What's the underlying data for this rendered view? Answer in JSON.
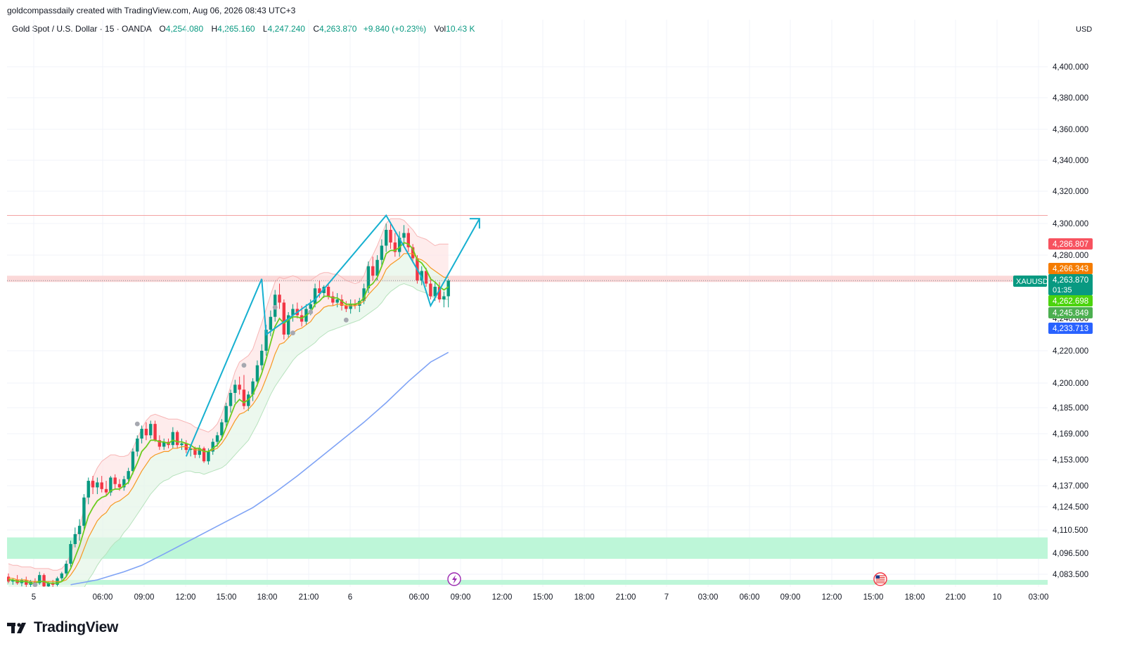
{
  "header": {
    "credit": "goldcompassdaily created with TradingView.com, Aug 06, 2026 08:43 UTC+3",
    "symbol": "Gold Spot / U.S. Dollar · 15 · OANDA",
    "o_label": "O",
    "o": "4,254.080",
    "h_label": "H",
    "h": "4,265.160",
    "l_label": "L",
    "l": "4,247.240",
    "c_label": "C",
    "c": "4,263.870",
    "change": "+9.840 (+0.23%)",
    "vol_label": "Vol",
    "vol": "10.43 K",
    "currency": "USD"
  },
  "footer": {
    "brand": "TradingView"
  },
  "chart_data": {
    "type": "candlestick",
    "y_axis": {
      "ticks": [
        4400,
        4380,
        4360,
        4340,
        4320,
        4300,
        4280,
        4220,
        4200,
        4185,
        4169,
        4153,
        4137,
        4124.5,
        4110.5,
        4096.5,
        4083.5
      ],
      "tick_labels": [
        "4,400.000",
        "4,380.000",
        "4,360.000",
        "4,340.000",
        "4,320.000",
        "4,300.000",
        "4,280.000",
        "4,220.000",
        "4,200.000",
        "4,185.000",
        "4,169.000",
        "4,153.000",
        "4,137.000",
        "4,124.500",
        "4,110.500",
        "4,096.500",
        "4,083.500"
      ],
      "partially_hidden_label": "4,240.000"
    },
    "x_axis": {
      "ticks": [
        "5",
        "06:00",
        "09:00",
        "12:00",
        "15:00",
        "18:00",
        "21:00",
        "6",
        "06:00",
        "09:00",
        "12:00",
        "15:00",
        "18:00",
        "21:00",
        "7",
        "03:00",
        "06:00",
        "09:00",
        "12:00",
        "15:00",
        "18:00",
        "21:00",
        "10",
        "03:00"
      ]
    },
    "price_tags": [
      {
        "label": "4,286.807",
        "value": 4286.8,
        "color": "#f7525f"
      },
      {
        "label": "4,266.343",
        "value": 4266.3,
        "color": "#f57c00"
      },
      {
        "label": "4,263.870",
        "value": 4263.9,
        "color": "#089981",
        "sub": "01:35"
      },
      {
        "label": "4,262.698",
        "value": 4256.0,
        "color": "#4cd40e"
      },
      {
        "label": "4,245.849",
        "value": 4246.5,
        "color": "#4caf50"
      },
      {
        "label": "4,233.713",
        "value": 4233.7,
        "color": "#2962ff"
      }
    ],
    "symbol_tag": "XAUUSD",
    "resistance_line": 4305,
    "resistance_zone": [
      4263,
      4267
    ],
    "support_zones": [
      [
        4093,
        4106
      ],
      [
        4077,
        4080
      ]
    ],
    "candles": [
      [
        4082,
        4084,
        4078,
        4079
      ],
      [
        4079,
        4081,
        4077,
        4080
      ],
      [
        4080,
        4083,
        4077,
        4078
      ],
      [
        4078,
        4081,
        4076,
        4080
      ],
      [
        4080,
        4082,
        4075,
        4077
      ],
      [
        4077,
        4080,
        4074,
        4079
      ],
      [
        4079,
        4081,
        4076,
        4078
      ],
      [
        4078,
        4085,
        4077,
        4083
      ],
      [
        4083,
        4084,
        4075,
        4076
      ],
      [
        4076,
        4079,
        4074,
        4078
      ],
      [
        4078,
        4080,
        4075,
        4077
      ],
      [
        4077,
        4082,
        4076,
        4081
      ],
      [
        4081,
        4085,
        4079,
        4084
      ],
      [
        4084,
        4092,
        4082,
        4090
      ],
      [
        4090,
        4104,
        4088,
        4102
      ],
      [
        4102,
        4112,
        4100,
        4108
      ],
      [
        4108,
        4117,
        4104,
        4113
      ],
      [
        4113,
        4132,
        4110,
        4130
      ],
      [
        4130,
        4142,
        4126,
        4140
      ],
      [
        4140,
        4143,
        4132,
        4136
      ],
      [
        4136,
        4142,
        4132,
        4139
      ],
      [
        4139,
        4143,
        4133,
        4135
      ],
      [
        4135,
        4140,
        4131,
        4133
      ],
      [
        4133,
        4143,
        4131,
        4142
      ],
      [
        4142,
        4144,
        4135,
        4138
      ],
      [
        4138,
        4141,
        4134,
        4136
      ],
      [
        4136,
        4143,
        4134,
        4141
      ],
      [
        4141,
        4148,
        4138,
        4146
      ],
      [
        4146,
        4160,
        4144,
        4158
      ],
      [
        4158,
        4168,
        4155,
        4166
      ],
      [
        4166,
        4174,
        4163,
        4172
      ],
      [
        4172,
        4176,
        4165,
        4168
      ],
      [
        4168,
        4177,
        4166,
        4175
      ],
      [
        4175,
        4177,
        4164,
        4165
      ],
      [
        4165,
        4168,
        4159,
        4161
      ],
      [
        4161,
        4166,
        4159,
        4164
      ],
      [
        4164,
        4166,
        4160,
        4162
      ],
      [
        4162,
        4173,
        4160,
        4170
      ],
      [
        4170,
        4171,
        4160,
        4162
      ],
      [
        4162,
        4166,
        4159,
        4163
      ],
      [
        4163,
        4165,
        4157,
        4159
      ],
      [
        4159,
        4162,
        4155,
        4160
      ],
      [
        4160,
        4161,
        4154,
        4156
      ],
      [
        4156,
        4162,
        4154,
        4160
      ],
      [
        4160,
        4161,
        4151,
        4152
      ],
      [
        4152,
        4160,
        4150,
        4158
      ],
      [
        4158,
        4166,
        4156,
        4164
      ],
      [
        4164,
        4170,
        4161,
        4168
      ],
      [
        4168,
        4178,
        4165,
        4176
      ],
      [
        4176,
        4188,
        4173,
        4186
      ],
      [
        4186,
        4196,
        4182,
        4194
      ],
      [
        4194,
        4202,
        4188,
        4199
      ],
      [
        4199,
        4204,
        4193,
        4196
      ],
      [
        4196,
        4205,
        4184,
        4186
      ],
      [
        4186,
        4195,
        4183,
        4193
      ],
      [
        4193,
        4203,
        4189,
        4201
      ],
      [
        4201,
        4214,
        4198,
        4211
      ],
      [
        4211,
        4224,
        4208,
        4220
      ],
      [
        4220,
        4236,
        4217,
        4233
      ],
      [
        4233,
        4245,
        4229,
        4241
      ],
      [
        4241,
        4258,
        4238,
        4255
      ],
      [
        4255,
        4262,
        4246,
        4250
      ],
      [
        4250,
        4252,
        4227,
        4230
      ],
      [
        4230,
        4244,
        4228,
        4242
      ],
      [
        4242,
        4249,
        4238,
        4246
      ],
      [
        4246,
        4250,
        4240,
        4242
      ],
      [
        4242,
        4248,
        4235,
        4238
      ],
      [
        4238,
        4249,
        4236,
        4246
      ],
      [
        4246,
        4252,
        4242,
        4249
      ],
      [
        4249,
        4262,
        4247,
        4259
      ],
      [
        4259,
        4264,
        4253,
        4256
      ],
      [
        4256,
        4261,
        4253,
        4260
      ],
      [
        4260,
        4262,
        4252,
        4254
      ],
      [
        4254,
        4257,
        4248,
        4250
      ],
      [
        4250,
        4256,
        4247,
        4252
      ],
      [
        4252,
        4255,
        4245,
        4248
      ],
      [
        4248,
        4251,
        4244,
        4246
      ],
      [
        4246,
        4252,
        4243,
        4249
      ],
      [
        4249,
        4252,
        4246,
        4248
      ],
      [
        4248,
        4253,
        4244,
        4251
      ],
      [
        4251,
        4262,
        4249,
        4259
      ],
      [
        4259,
        4276,
        4256,
        4273
      ],
      [
        4273,
        4279,
        4264,
        4267
      ],
      [
        4267,
        4280,
        4264,
        4277
      ],
      [
        4277,
        4290,
        4273,
        4286
      ],
      [
        4286,
        4300,
        4282,
        4296
      ],
      [
        4296,
        4301,
        4284,
        4288
      ],
      [
        4288,
        4294,
        4279,
        4282
      ],
      [
        4282,
        4295,
        4279,
        4291
      ],
      [
        4291,
        4299,
        4286,
        4294
      ],
      [
        4294,
        4297,
        4282,
        4285
      ],
      [
        4285,
        4287,
        4275,
        4278
      ],
      [
        4278,
        4280,
        4262,
        4264
      ],
      [
        4264,
        4273,
        4261,
        4270
      ],
      [
        4270,
        4272,
        4260,
        4262
      ],
      [
        4262,
        4266,
        4252,
        4254
      ],
      [
        4254,
        4263,
        4251,
        4260
      ],
      [
        4260,
        4263,
        4250,
        4252
      ],
      [
        4252,
        4257,
        4247,
        4254
      ],
      [
        4254,
        4265,
        4247,
        4264
      ]
    ],
    "ema_fast": [
      4080,
      4080,
      4079,
      4079,
      4079,
      4078,
      4078,
      4079,
      4079,
      4078,
      4078,
      4078,
      4079,
      4082,
      4087,
      4094,
      4101,
      4110,
      4119,
      4124,
      4128,
      4130,
      4131,
      4134,
      4135,
      4135,
      4137,
      4139,
      4145,
      4151,
      4158,
      4161,
      4165,
      4165,
      4164,
      4164,
      4163,
      4165,
      4164,
      4164,
      4163,
      4162,
      4160,
      4160,
      4158,
      4158,
      4160,
      4162,
      4166,
      4173,
      4180,
      4187,
      4190,
      4188,
      4190,
      4193,
      4199,
      4206,
      4215,
      4225,
      4235,
      4240,
      4237,
      4239,
      4241,
      4241,
      4240,
      4242,
      4244,
      4249,
      4251,
      4254,
      4254,
      4253,
      4253,
      4251,
      4249,
      4249,
      4249,
      4250,
      4253,
      4260,
      4262,
      4266,
      4273,
      4281,
      4283,
      4283,
      4285,
      4288,
      4287,
      4284,
      4277,
      4275,
      4271,
      4265,
      4263,
      4260,
      4258,
      4260
    ],
    "ema_mid": [
      4081,
      4081,
      4080,
      4080,
      4080,
      4079,
      4079,
      4079,
      4079,
      4079,
      4079,
      4079,
      4079,
      4080,
      4083,
      4087,
      4092,
      4099,
      4106,
      4111,
      4116,
      4119,
      4121,
      4125,
      4127,
      4128,
      4130,
      4132,
      4136,
      4141,
      4146,
      4150,
      4154,
      4156,
      4157,
      4158,
      4158,
      4160,
      4160,
      4161,
      4161,
      4160,
      4159,
      4159,
      4158,
      4158,
      4159,
      4160,
      4163,
      4167,
      4172,
      4177,
      4181,
      4182,
      4184,
      4187,
      4191,
      4196,
      4203,
      4210,
      4218,
      4224,
      4225,
      4228,
      4231,
      4233,
      4234,
      4236,
      4238,
      4242,
      4244,
      4247,
      4248,
      4248,
      4249,
      4249,
      4248,
      4248,
      4248,
      4249,
      4251,
      4255,
      4258,
      4261,
      4265,
      4271,
      4274,
      4276,
      4278,
      4281,
      4281,
      4281,
      4278,
      4277,
      4275,
      4272,
      4270,
      4268,
      4266,
      4266
    ],
    "bb_upper": [
      4090,
      4089,
      4089,
      4088,
      4088,
      4088,
      4087,
      4087,
      4087,
      4087,
      4086,
      4086,
      4087,
      4090,
      4096,
      4104,
      4112,
      4123,
      4134,
      4142,
      4148,
      4152,
      4154,
      4156,
      4156,
      4155,
      4155,
      4156,
      4160,
      4166,
      4172,
      4177,
      4180,
      4181,
      4180,
      4179,
      4178,
      4178,
      4178,
      4177,
      4176,
      4175,
      4173,
      4172,
      4171,
      4170,
      4172,
      4175,
      4181,
      4189,
      4198,
      4207,
      4213,
      4215,
      4217,
      4221,
      4229,
      4237,
      4246,
      4255,
      4263,
      4266,
      4265,
      4266,
      4267,
      4266,
      4264,
      4264,
      4264,
      4266,
      4268,
      4269,
      4269,
      4268,
      4268,
      4266,
      4264,
      4263,
      4262,
      4263,
      4267,
      4275,
      4280,
      4286,
      4293,
      4300,
      4303,
      4303,
      4303,
      4302,
      4299,
      4296,
      4292,
      4291,
      4290,
      4288,
      4286,
      4287,
      4287,
      4287
    ],
    "bb_lower": [
      4072,
      4072,
      4071,
      4071,
      4071,
      4070,
      4070,
      4070,
      4070,
      4070,
      4070,
      4070,
      4070,
      4069,
      4068,
      4069,
      4071,
      4075,
      4080,
      4084,
      4089,
      4093,
      4096,
      4100,
      4103,
      4105,
      4109,
      4112,
      4116,
      4120,
      4124,
      4128,
      4132,
      4135,
      4138,
      4140,
      4141,
      4143,
      4144,
      4145,
      4146,
      4146,
      4145,
      4145,
      4144,
      4145,
      4146,
      4147,
      4148,
      4150,
      4153,
      4156,
      4159,
      4162,
      4165,
      4170,
      4175,
      4181,
      4187,
      4193,
      4198,
      4202,
      4206,
      4210,
      4214,
      4217,
      4219,
      4221,
      4223,
      4225,
      4228,
      4230,
      4232,
      4233,
      4234,
      4235,
      4236,
      4237,
      4238,
      4239,
      4241,
      4243,
      4245,
      4247,
      4250,
      4254,
      4257,
      4259,
      4261,
      4262,
      4261,
      4260,
      4258,
      4257,
      4256,
      4254,
      4253,
      4253,
      4252,
      4252
    ],
    "sma_slow": [
      [
        14,
        4077
      ],
      [
        20,
        4080
      ],
      [
        26,
        4085
      ],
      [
        30,
        4089
      ],
      [
        35,
        4096
      ],
      [
        40,
        4103
      ],
      [
        45,
        4110
      ],
      [
        50,
        4117
      ],
      [
        55,
        4124
      ],
      [
        60,
        4133
      ],
      [
        65,
        4143
      ],
      [
        70,
        4154
      ],
      [
        75,
        4165
      ],
      [
        80,
        4176
      ],
      [
        85,
        4188
      ],
      [
        90,
        4201
      ],
      [
        95,
        4213
      ],
      [
        99,
        4219
      ]
    ],
    "dots": [
      [
        29,
        4175
      ],
      [
        53,
        4211
      ],
      [
        60,
        4247
      ],
      [
        64,
        4231
      ],
      [
        68,
        4244
      ],
      [
        76,
        4239
      ],
      [
        6,
        4077
      ]
    ],
    "pattern_drawing": [
      [
        40,
        4155
      ],
      [
        57,
        4265
      ],
      [
        58,
        4230
      ],
      [
        69,
        4252
      ],
      [
        85,
        4305
      ],
      [
        93,
        4266
      ],
      [
        95,
        4248
      ],
      [
        106,
        4303
      ]
    ],
    "pattern_arrow_tip": [
      106,
      4303
    ],
    "event_icons": [
      "lightning",
      "us-flag"
    ]
  }
}
